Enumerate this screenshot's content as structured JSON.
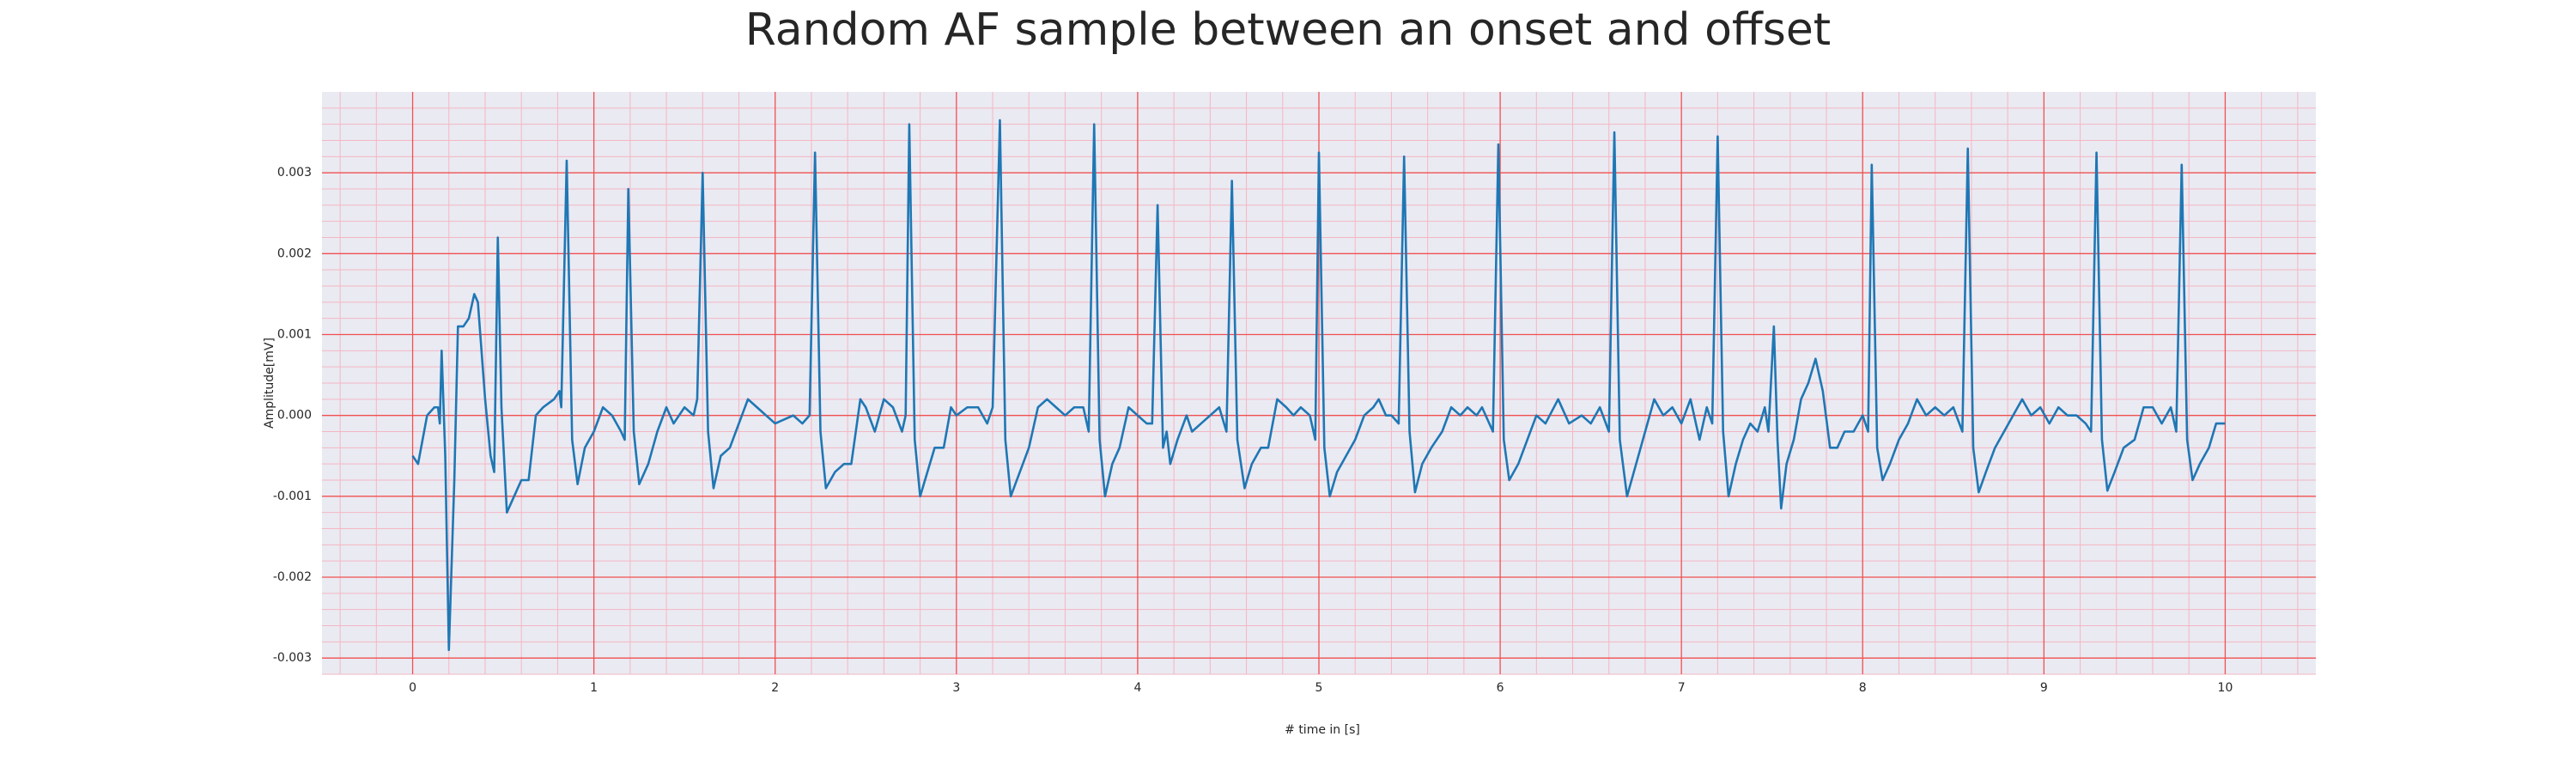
{
  "chart_data": {
    "type": "line",
    "title": "Random AF sample between an onset and offset",
    "xlabel": "# time in [s]",
    "ylabel": "Amplitude[mV]",
    "color": "#1f77b4",
    "grid": true,
    "minor_grid": true,
    "xlim": [
      -0.5,
      10.5
    ],
    "ylim": [
      -0.0032,
      0.004
    ],
    "xticks": [
      0,
      1,
      2,
      3,
      4,
      5,
      6,
      7,
      8,
      9,
      10
    ],
    "yticks": [
      -0.003,
      -0.002,
      -0.001,
      {
        "value": 0,
        "label": "0.000"
      },
      0.001,
      0.002,
      0.003
    ],
    "x": [
      0,
      0.03,
      0.08,
      0.12,
      0.14,
      0.15,
      0.16,
      0.18,
      0.2,
      0.23,
      0.25,
      0.28,
      0.31,
      0.34,
      0.36,
      0.4,
      0.43,
      0.45,
      0.47,
      0.49,
      0.52,
      0.56,
      0.6,
      0.64,
      0.68,
      0.72,
      0.78,
      0.81,
      0.82,
      0.85,
      0.88,
      0.91,
      0.95,
      1.0,
      1.05,
      1.1,
      1.15,
      1.17,
      1.19,
      1.22,
      1.25,
      1.3,
      1.35,
      1.4,
      1.44,
      1.5,
      1.55,
      1.57,
      1.6,
      1.63,
      1.66,
      1.7,
      1.75,
      1.8,
      1.85,
      1.9,
      1.95,
      2.0,
      2.1,
      2.15,
      2.19,
      2.22,
      2.25,
      2.28,
      2.33,
      2.38,
      2.42,
      2.47,
      2.5,
      2.55,
      2.6,
      2.65,
      2.7,
      2.72,
      2.74,
      2.77,
      2.8,
      2.84,
      2.88,
      2.93,
      2.97,
      3.0,
      3.06,
      3.12,
      3.17,
      3.2,
      3.24,
      3.27,
      3.3,
      3.35,
      3.4,
      3.45,
      3.5,
      3.55,
      3.6,
      3.65,
      3.7,
      3.73,
      3.76,
      3.79,
      3.82,
      3.86,
      3.9,
      3.95,
      4.0,
      4.05,
      4.08,
      4.11,
      4.14,
      4.16,
      4.18,
      4.22,
      4.27,
      4.3,
      4.35,
      4.4,
      4.45,
      4.49,
      4.52,
      4.55,
      4.59,
      4.63,
      4.68,
      4.72,
      4.77,
      4.82,
      4.86,
      4.9,
      4.95,
      4.98,
      5.0,
      5.03,
      5.06,
      5.1,
      5.15,
      5.2,
      5.25,
      5.3,
      5.33,
      5.37,
      5.4,
      5.44,
      5.47,
      5.5,
      5.53,
      5.57,
      5.62,
      5.68,
      5.73,
      5.78,
      5.82,
      5.87,
      5.9,
      5.96,
      5.99,
      6.02,
      6.05,
      6.1,
      6.15,
      6.2,
      6.25,
      6.32,
      6.38,
      6.45,
      6.5,
      6.55,
      6.6,
      6.63,
      6.66,
      6.7,
      6.75,
      6.8,
      6.85,
      6.9,
      6.95,
      7.0,
      7.05,
      7.1,
      7.14,
      7.17,
      7.2,
      7.23,
      7.26,
      7.3,
      7.34,
      7.38,
      7.42,
      7.46,
      7.48,
      7.51,
      7.53,
      7.55,
      7.58,
      7.62,
      7.66,
      7.7,
      7.74,
      7.78,
      7.82,
      7.86,
      7.9,
      7.95,
      8.0,
      8.03,
      8.05,
      8.08,
      8.11,
      8.15,
      8.2,
      8.25,
      8.3,
      8.35,
      8.4,
      8.45,
      8.5,
      8.55,
      8.58,
      8.61,
      8.64,
      8.68,
      8.73,
      8.78,
      8.83,
      8.88,
      8.93,
      8.98,
      9.03,
      9.08,
      9.13,
      9.18,
      9.23,
      9.26,
      9.29,
      9.32,
      9.35,
      9.39,
      9.44,
      9.5,
      9.55,
      9.6,
      9.65,
      9.7,
      9.73,
      9.76,
      9.79,
      9.82,
      9.86,
      9.91,
      9.95,
      10.0
    ],
    "values": [
      -0.0005,
      -0.0006,
      0,
      0.0001,
      0.0001,
      -0.0001,
      0.0008,
      -0.0005,
      -0.0029,
      -0.0008,
      0.0011,
      0.0011,
      0.0012,
      0.0015,
      0.0014,
      0.0002,
      -0.0005,
      -0.0007,
      0.0022,
      0.0001,
      -0.0012,
      -0.001,
      -0.0008,
      -0.0008,
      0,
      0.0001,
      0.0002,
      0.0003,
      0.0001,
      0.00315,
      -0.0003,
      -0.00085,
      -0.0004,
      -0.0002,
      0.0001,
      0,
      -0.0002,
      -0.0003,
      0.0028,
      -0.0002,
      -0.00085,
      -0.0006,
      -0.0002,
      0.0001,
      -0.0001,
      0.0001,
      0,
      0.0002,
      0.003,
      -0.0002,
      -0.0009,
      -0.0005,
      -0.0004,
      -0.0001,
      0.0002,
      0.0001,
      0,
      -0.0001,
      0,
      -0.0001,
      0,
      0.00325,
      -0.0002,
      -0.0009,
      -0.0007,
      -0.0006,
      -0.0006,
      0.0002,
      0.0001,
      -0.0002,
      0.0002,
      0.0001,
      -0.0002,
      0,
      0.0036,
      -0.0003,
      -0.001,
      -0.0007,
      -0.0004,
      -0.0004,
      0.0001,
      0,
      0.0001,
      0.0001,
      -0.0001,
      0.0001,
      0.00365,
      -0.0003,
      -0.001,
      -0.0007,
      -0.0004,
      0.0001,
      0.0002,
      0.0001,
      0,
      0.0001,
      0.0001,
      -0.0002,
      0.0036,
      -0.0003,
      -0.001,
      -0.0006,
      -0.0004,
      0.0001,
      0,
      -0.0001,
      -0.0001,
      0.0026,
      -0.0004,
      -0.0002,
      -0.0006,
      -0.0003,
      0,
      -0.0002,
      -0.0001,
      0,
      0.0001,
      -0.0002,
      0.0029,
      -0.0003,
      -0.0009,
      -0.0006,
      -0.0004,
      -0.0004,
      0.0002,
      0.0001,
      0,
      0.0001,
      0,
      -0.0003,
      0.00325,
      -0.0004,
      -0.001,
      -0.0007,
      -0.0005,
      -0.0003,
      0,
      0.0001,
      0.0002,
      0,
      0,
      -0.0001,
      0.0032,
      -0.0002,
      -0.00095,
      -0.0006,
      -0.0004,
      -0.0002,
      0.0001,
      0,
      0.0001,
      0,
      0.0001,
      -0.0002,
      0.00335,
      -0.0003,
      -0.0008,
      -0.0006,
      -0.0003,
      0,
      -0.0001,
      0.0002,
      -0.0001,
      0,
      -0.0001,
      0.0001,
      -0.0002,
      0.0035,
      -0.0003,
      -0.001,
      -0.0006,
      -0.0002,
      0.0002,
      0,
      0.0001,
      -0.0001,
      0.0002,
      -0.0003,
      0.0001,
      -0.0001,
      0.00345,
      -0.0002,
      -0.001,
      -0.0006,
      -0.0003,
      -0.0001,
      -0.0002,
      0.0001,
      -0.0002,
      0.0011,
      -0.0003,
      -0.00115,
      -0.0006,
      -0.0003,
      0.0002,
      0.0004,
      0.0007,
      0.0003,
      -0.0004,
      -0.0004,
      -0.0002,
      -0.0002,
      0,
      -0.0002,
      0.0031,
      -0.0004,
      -0.0008,
      -0.0006,
      -0.0003,
      -0.0001,
      0.0002,
      0,
      0.0001,
      0,
      0.0001,
      -0.0002,
      0.0033,
      -0.0004,
      -0.00095,
      -0.0007,
      -0.0004,
      -0.0002,
      0,
      0.0002,
      0,
      0.0001,
      -0.0001,
      0.0001,
      0,
      0,
      -0.0001,
      -0.0002,
      0.00325,
      -0.0003,
      -0.00093,
      -0.0007,
      -0.0004,
      -0.0003,
      0.0001,
      0.0001,
      -0.0001,
      0.0001,
      -0.0002,
      0.0031,
      -0.0003,
      -0.0008,
      -0.0006,
      -0.0004,
      -0.0001,
      -0.0001
    ]
  }
}
